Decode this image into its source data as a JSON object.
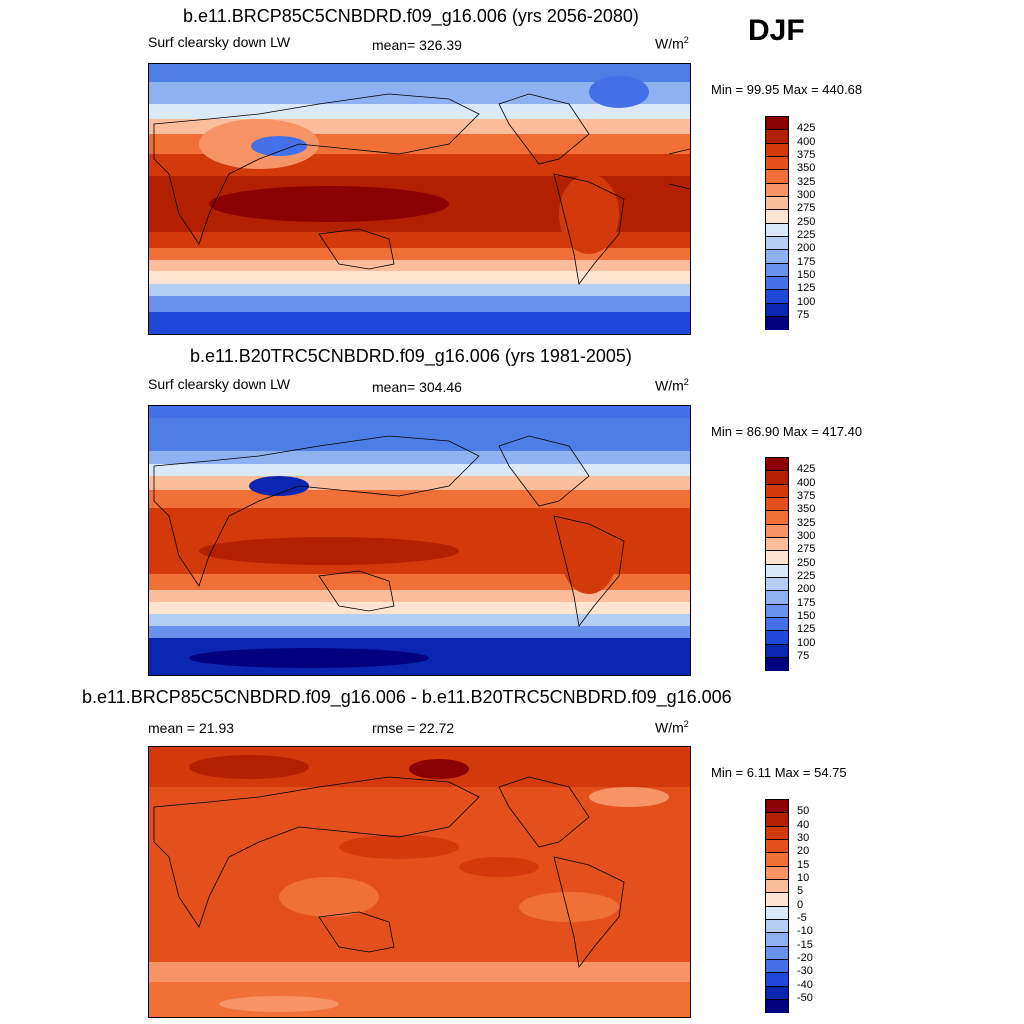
{
  "season": "DJF",
  "panels": [
    {
      "title": "b.e11.BRCP85C5CNBDRD.f09_g16.006 (yrs 2056-2080)",
      "left_label": "Surf clearsky down LW",
      "center_label": "mean= 326.39",
      "units_base": "W/m",
      "units_exp": "2",
      "minmax": "Min =  99.95 Max = 440.68",
      "ticks": [
        "425",
        "400",
        "375",
        "350",
        "325",
        "300",
        "275",
        "250",
        "225",
        "200",
        "175",
        "150",
        "125",
        "100",
        "75"
      ],
      "colors": [
        "#8b0000",
        "#b22000",
        "#d23a0c",
        "#e4501c",
        "#f07038",
        "#f79466",
        "#fbbd9c",
        "#fde4d0",
        "#dbe8f7",
        "#b4cdf3",
        "#8eb2f0",
        "#6a92ec",
        "#4670e8",
        "#2048d8",
        "#0a26b0",
        "#000080"
      ]
    },
    {
      "title": "b.e11.B20TRC5CNBDRD.f09_g16.006 (yrs 1981-2005)",
      "left_label": "Surf clearsky down LW",
      "center_label": "mean= 304.46",
      "units_base": "W/m",
      "units_exp": "2",
      "minmax": "Min =  86.90 Max = 417.40",
      "ticks": [
        "425",
        "400",
        "375",
        "350",
        "325",
        "300",
        "275",
        "250",
        "225",
        "200",
        "175",
        "150",
        "125",
        "100",
        "75"
      ],
      "colors": [
        "#8b0000",
        "#b22000",
        "#d23a0c",
        "#e4501c",
        "#f07038",
        "#f79466",
        "#fbbd9c",
        "#fde4d0",
        "#dbe8f7",
        "#b4cdf3",
        "#8eb2f0",
        "#6a92ec",
        "#4670e8",
        "#2048d8",
        "#0a26b0",
        "#000080"
      ]
    },
    {
      "title": "b.e11.BRCP85C5CNBDRD.f09_g16.006 - b.e11.B20TRC5CNBDRD.f09_g16.006",
      "left_label": "mean =  21.93",
      "center_label": "rmse =  22.72",
      "units_base": "W/m",
      "units_exp": "2",
      "minmax": "Min =   6.11 Max =  54.75",
      "ticks": [
        "50",
        "40",
        "30",
        "20",
        "15",
        "10",
        "5",
        "0",
        "-5",
        "-10",
        "-15",
        "-20",
        "-30",
        "-40",
        "-50"
      ],
      "colors": [
        "#8b0000",
        "#b22000",
        "#d23a0c",
        "#e4501c",
        "#f07038",
        "#f79466",
        "#fbbd9c",
        "#fde4d0",
        "#dbe8f7",
        "#b4cdf3",
        "#8eb2f0",
        "#6a92ec",
        "#4670e8",
        "#2048d8",
        "#0a26b0",
        "#000080"
      ]
    }
  ]
}
